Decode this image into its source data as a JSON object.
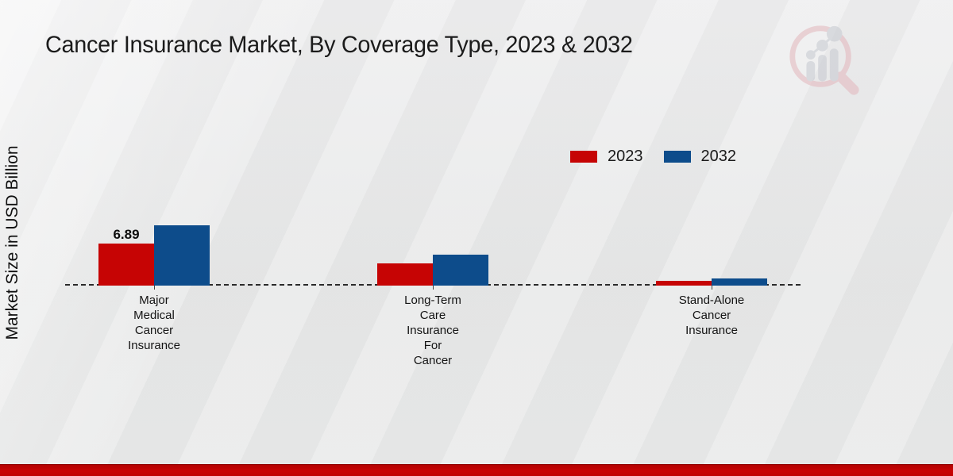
{
  "title": "Cancer Insurance Market, By Coverage Type, 2023 & 2032",
  "ylabel": "Market Size in USD Billion",
  "legend": {
    "items": [
      {
        "label": "2023",
        "color": "#c60404"
      },
      {
        "label": "2032",
        "color": "#0d4c8b"
      }
    ]
  },
  "chart_data": {
    "type": "bar",
    "title": "Cancer Insurance Market, By Coverage Type, 2023 & 2032",
    "xlabel": "",
    "ylabel": "Market Size in USD Billion",
    "categories": [
      "Major\nMedical\nCancer\nInsurance",
      "Long-Term\nCare\nInsurance\nFor\nCancer",
      "Stand-Alone\nCancer\nInsurance"
    ],
    "series": [
      {
        "name": "2023",
        "color": "#c60404",
        "values": [
          6.89,
          3.5,
          0.6
        ]
      },
      {
        "name": "2032",
        "color": "#0d4c8b",
        "values": [
          10.0,
          5.0,
          0.9
        ]
      }
    ],
    "bar_labels": [
      [
        "6.89",
        "",
        ""
      ],
      [
        "",
        "",
        ""
      ]
    ],
    "ylim": [
      0,
      12
    ],
    "axis_lines": "dashed-baseline-only",
    "grid": false,
    "legend_position": "upper-right"
  },
  "watermark": {
    "name": "market-research-magnifier-logo"
  },
  "footer": {
    "color": "#c00303"
  }
}
